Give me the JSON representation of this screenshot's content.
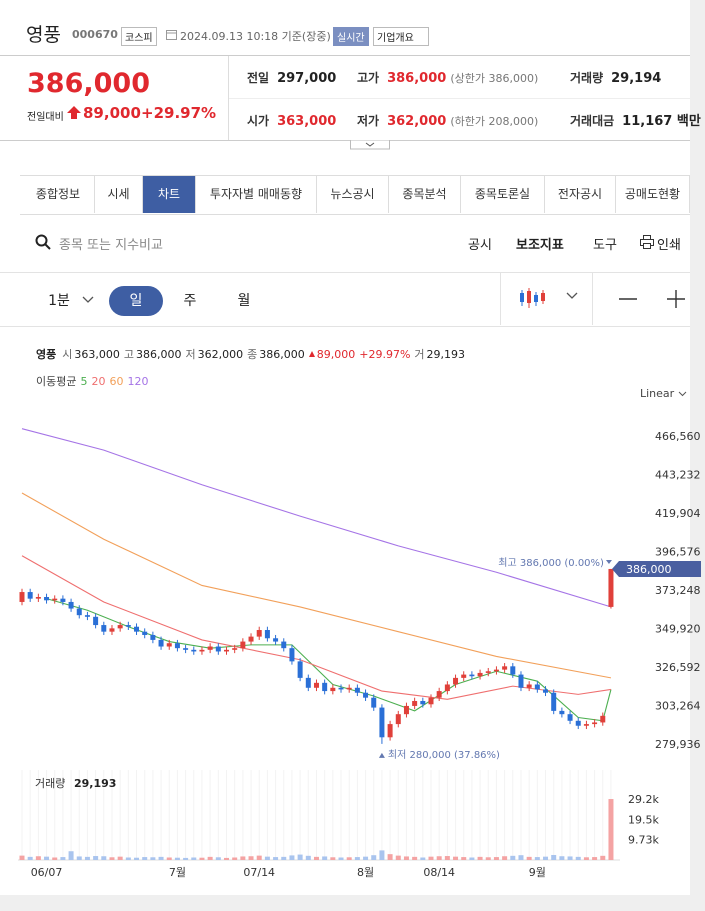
{
  "header": {
    "name": "영풍",
    "code": "000670",
    "market": "코스피",
    "timestamp": "2024.09.13 10:18 기준(장중)",
    "realtime": "실시간",
    "company": "기업개요"
  },
  "quote": {
    "price": "386,000",
    "change_label": "전일대비",
    "change": "89,000",
    "change_pct": "+29.97%",
    "up_color": "#e0282e",
    "stats": [
      {
        "label": "전일",
        "value": "297,000"
      },
      {
        "label": "고가",
        "value": "386,000",
        "note": "(상한가 386,000)",
        "color": "#e0282e"
      },
      {
        "label": "거래량",
        "value": "29,194"
      },
      {
        "label": "시가",
        "value": "363,000",
        "color": "#e0282e"
      },
      {
        "label": "저가",
        "value": "362,000",
        "note": "(하한가 208,000)",
        "color": "#e0282e"
      },
      {
        "label": "거래대금",
        "value": "11,167 백만"
      }
    ]
  },
  "tabs": [
    "종합정보",
    "시세",
    "차트",
    "투자자별 매매동향",
    "뉴스공시",
    "종목분석",
    "종목토론실",
    "전자공시",
    "공매도현황"
  ],
  "active_tab": 2,
  "search": {
    "placeholder": "종목 또는 지수비교",
    "tools": [
      "공시",
      "보조지표",
      "도구",
      "인쇄"
    ]
  },
  "periods": [
    "1분",
    "일",
    "주",
    "월"
  ],
  "active_period": 1,
  "chart_data": [
    {
      "type": "candlestick",
      "info": {
        "name": "영풍",
        "items": [
          {
            "label": "시",
            "value": "363,000"
          },
          {
            "label": "고",
            "value": "386,000"
          },
          {
            "label": "저",
            "value": "362,000"
          },
          {
            "label": "종",
            "value": "386,000"
          }
        ],
        "change": "89,000",
        "change_pct": "+29.97%",
        "volume_label": "거",
        "volume": "29,193"
      },
      "ma_label": "이동평균",
      "scale_label": "Linear",
      "up_color": "#e0403a",
      "down_color": "#2a6fd6",
      "open": [
        366000,
        372000,
        368000,
        369000,
        367000,
        368000,
        366000,
        362000,
        358000,
        357000,
        352000,
        348000,
        350000,
        352000,
        351000,
        348000,
        346000,
        343000,
        339000,
        341000,
        338000,
        337000,
        336000,
        337000,
        339000,
        336000,
        337000,
        338000,
        342000,
        345000,
        349000,
        344000,
        342000,
        338000,
        330000,
        320000,
        314000,
        317000,
        312000,
        314000,
        313000,
        314000,
        311000,
        308000,
        302000,
        284000,
        292000,
        298000,
        303000,
        306000,
        304000,
        308000,
        312000,
        316000,
        320000,
        322000,
        321000,
        323000,
        324000,
        325000,
        327000,
        322000,
        314000,
        316000,
        313000,
        311000,
        300000,
        298000,
        294000,
        291000,
        292000,
        293000,
        363000
      ],
      "high": [
        374000,
        374000,
        371000,
        371000,
        370000,
        370000,
        368000,
        364000,
        360000,
        359000,
        354000,
        352000,
        354000,
        354000,
        353000,
        350000,
        348000,
        345000,
        343000,
        343000,
        340000,
        339000,
        339000,
        341000,
        341000,
        339000,
        340000,
        344000,
        347000,
        351000,
        351000,
        346000,
        344000,
        340000,
        332000,
        322000,
        319000,
        319000,
        316000,
        316000,
        316000,
        316000,
        313000,
        310000,
        304000,
        294000,
        300000,
        305000,
        308000,
        308000,
        310000,
        314000,
        318000,
        322000,
        324000,
        324000,
        325000,
        326000,
        327000,
        329000,
        329000,
        324000,
        318000,
        318000,
        315000,
        313000,
        302000,
        300000,
        296000,
        294000,
        295000,
        299000,
        386000
      ],
      "low": [
        364000,
        366000,
        366000,
        365000,
        365000,
        364000,
        360000,
        356000,
        355000,
        350000,
        346000,
        346000,
        348000,
        349000,
        346000,
        344000,
        341000,
        337000,
        337000,
        336000,
        335000,
        334000,
        334000,
        335000,
        334000,
        334000,
        335000,
        336000,
        340000,
        343000,
        342000,
        340000,
        336000,
        328000,
        318000,
        312000,
        312000,
        310000,
        310000,
        311000,
        311000,
        309000,
        306000,
        300000,
        280000,
        282000,
        290000,
        296000,
        301000,
        302000,
        302000,
        306000,
        310000,
        314000,
        318000,
        319000,
        319000,
        321000,
        322000,
        323000,
        320000,
        312000,
        312000,
        311000,
        309000,
        298000,
        296000,
        292000,
        289000,
        289000,
        290000,
        291000,
        362000
      ],
      "close": [
        372000,
        368000,
        369000,
        367000,
        368000,
        366000,
        362000,
        358000,
        357000,
        352000,
        348000,
        350000,
        352000,
        351000,
        348000,
        346000,
        343000,
        339000,
        341000,
        338000,
        337000,
        336000,
        337000,
        339000,
        336000,
        337000,
        338000,
        342000,
        345000,
        349000,
        344000,
        342000,
        338000,
        330000,
        320000,
        314000,
        317000,
        312000,
        314000,
        313000,
        314000,
        311000,
        308000,
        302000,
        284000,
        292000,
        298000,
        303000,
        306000,
        304000,
        308000,
        312000,
        316000,
        320000,
        322000,
        321000,
        323000,
        324000,
        325000,
        327000,
        322000,
        314000,
        316000,
        313000,
        311000,
        300000,
        298000,
        294000,
        291000,
        292000,
        293000,
        297000,
        386000
      ],
      "series": [
        {
          "name": "5",
          "color": "#4caf50",
          "x": [
            3,
            8,
            13,
            18,
            23,
            28,
            33,
            38,
            43,
            48,
            53,
            58,
            63,
            68,
            71,
            72
          ],
          "values": [
            368000,
            361000,
            351000,
            342000,
            338000,
            340000,
            340000,
            316000,
            309000,
            300000,
            316000,
            324000,
            318000,
            296000,
            294000,
            313000
          ]
        },
        {
          "name": "20",
          "color": "#ef6f6f",
          "x": [
            0,
            10,
            22,
            34,
            44,
            52,
            60,
            68,
            72
          ],
          "values": [
            394000,
            366000,
            343000,
            331000,
            312000,
            307000,
            315000,
            310000,
            313000
          ]
        },
        {
          "name": "60",
          "color": "#f2a05a",
          "x": [
            0,
            10,
            22,
            34,
            46,
            58,
            72
          ],
          "values": [
            432000,
            404000,
            376000,
            363000,
            348000,
            333000,
            320000
          ]
        },
        {
          "name": "120",
          "color": "#a574e6",
          "x": [
            0,
            10,
            22,
            34,
            46,
            58,
            72
          ],
          "values": [
            471000,
            458000,
            437000,
            418000,
            400000,
            384000,
            363000
          ]
        }
      ],
      "ylim": [
        270240,
        482310
      ],
      "yticks": [
        {
          "value": 466560,
          "label": "466,560"
        },
        {
          "value": 443232,
          "label": "443,232"
        },
        {
          "value": 419904,
          "label": "419,904"
        },
        {
          "value": 396576,
          "label": "396,576"
        },
        {
          "value": 373248,
          "label": "373,248"
        },
        {
          "value": 349920,
          "label": "349,920"
        },
        {
          "value": 326592,
          "label": "326,592"
        },
        {
          "value": 303264,
          "label": "303,264"
        },
        {
          "value": 279936,
          "label": "279,936"
        }
      ],
      "current": {
        "value": 386000,
        "label": "386,000",
        "color": "#4a5fa0"
      },
      "high_note": {
        "index": 72,
        "value": 386000,
        "label": "최고 386,000 (0.00%)"
      },
      "low_note": {
        "index": 44,
        "value": 280000,
        "label": "최저 280,000 (37.86%)"
      }
    },
    {
      "type": "bar",
      "title": "거래량",
      "title_value": "29,193",
      "up_color": "#f4a3a3",
      "down_color": "#a9c4ee",
      "values": [
        2100,
        1500,
        1800,
        1600,
        1200,
        1400,
        4200,
        1700,
        1500,
        1900,
        1800,
        1300,
        1600,
        1200,
        1100,
        1400,
        1300,
        1500,
        1200,
        1100,
        1000,
        1200,
        1100,
        1500,
        1300,
        1000,
        1200,
        1700,
        1800,
        2100,
        1600,
        1400,
        1500,
        2200,
        2600,
        2000,
        1500,
        1700,
        1300,
        1200,
        1300,
        1400,
        1600,
        2300,
        4600,
        2800,
        2100,
        1700,
        1500,
        1200,
        1600,
        1800,
        1900,
        1600,
        1400,
        1200,
        1500,
        1300,
        1400,
        1800,
        2000,
        2300,
        1500,
        1400,
        1600,
        2400,
        1800,
        1700,
        1500,
        1300,
        1400,
        2000,
        29193
      ],
      "ylim": [
        0,
        43100
      ],
      "yticks": [
        {
          "value": 29200,
          "label": "29.2k"
        },
        {
          "value": 19500,
          "label": "19.5k"
        },
        {
          "value": 9730,
          "label": "9.73k"
        }
      ],
      "xticks": [
        {
          "value": 3,
          "label": "06/07"
        },
        {
          "value": 19,
          "label": "7월"
        },
        {
          "value": 29,
          "label": "07/14"
        },
        {
          "value": 42,
          "label": "8월"
        },
        {
          "value": 51,
          "label": "08/14"
        },
        {
          "value": 63,
          "label": "9월"
        }
      ]
    }
  ]
}
